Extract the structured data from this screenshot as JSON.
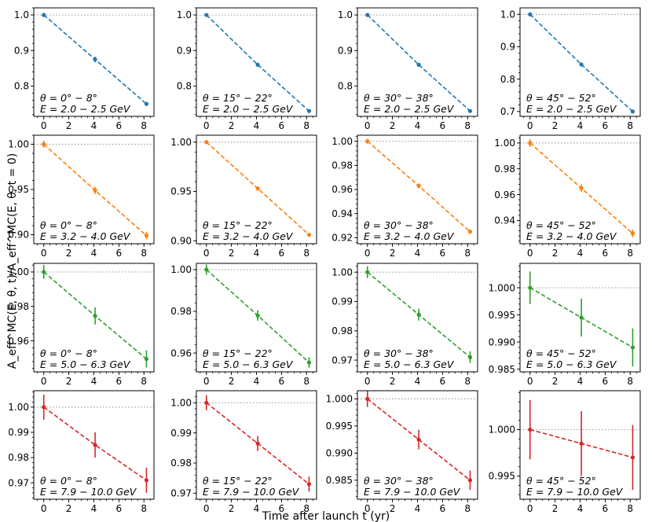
{
  "figure": {
    "xlabel": "Time after launch t (yr)",
    "ylabel": "A_eff^MC(E, θ, t)/A_eff^MC(E, θ, t = 0)"
  },
  "colors": [
    "#1f77b4",
    "#ff7f0e",
    "#2ca02c",
    "#d62728"
  ],
  "chart_data": [
    {
      "type": "line",
      "row": 0,
      "col": 0,
      "theta_label": "θ = 0° − 8°",
      "energy_label": "E = 2.0 − 2.5 GeV",
      "x": [
        0,
        4.1,
        8.2
      ],
      "y": [
        1.0,
        0.875,
        0.75
      ],
      "yerr": [
        0.006,
        0.008,
        0.006
      ],
      "xlim": [
        -0.8,
        8.8
      ],
      "ylim": [
        0.715,
        1.02
      ],
      "yticks": [
        0.8,
        0.9,
        1.0
      ],
      "ytick_labels": [
        "0.8",
        "0.9",
        "1.0"
      ],
      "xticks": [
        0,
        2,
        4,
        6,
        8
      ],
      "xtick_labels": [
        "0",
        "2",
        "4",
        "6",
        "8"
      ],
      "reference_y": 1.0
    },
    {
      "type": "line",
      "row": 0,
      "col": 1,
      "theta_label": "θ = 15° − 22°",
      "energy_label": "E = 2.0 − 2.5 GeV",
      "x": [
        0,
        4.1,
        8.2
      ],
      "y": [
        1.0,
        0.86,
        0.73
      ],
      "yerr": [
        0.003,
        0.003,
        0.003
      ],
      "xlim": [
        -0.8,
        8.8
      ],
      "ylim": [
        0.715,
        1.02
      ],
      "yticks": [
        0.8,
        0.9,
        1.0
      ],
      "ytick_labels": [
        "0.8",
        "0.9",
        "1.0"
      ],
      "xticks": [
        0,
        2,
        4,
        6,
        8
      ],
      "xtick_labels": [
        "0",
        "2",
        "4",
        "6",
        "8"
      ],
      "reference_y": 1.0
    },
    {
      "type": "line",
      "row": 0,
      "col": 2,
      "theta_label": "θ = 30° − 38°",
      "energy_label": "E = 2.0 − 2.5 GeV",
      "x": [
        0,
        4.1,
        8.2
      ],
      "y": [
        1.0,
        0.86,
        0.73
      ],
      "yerr": [
        0.003,
        0.003,
        0.003
      ],
      "xlim": [
        -0.8,
        8.8
      ],
      "ylim": [
        0.715,
        1.02
      ],
      "yticks": [
        0.8,
        0.9,
        1.0
      ],
      "ytick_labels": [
        "0.8",
        "0.9",
        "1.0"
      ],
      "xticks": [
        0,
        2,
        4,
        6,
        8
      ],
      "xtick_labels": [
        "0",
        "2",
        "4",
        "6",
        "8"
      ],
      "reference_y": 1.0
    },
    {
      "type": "line",
      "row": 0,
      "col": 3,
      "theta_label": "θ = 45° − 52°",
      "energy_label": "E = 2.0 − 2.5 GeV",
      "x": [
        0,
        4.1,
        8.2
      ],
      "y": [
        1.0,
        0.845,
        0.7
      ],
      "yerr": [
        0.006,
        0.006,
        0.006
      ],
      "xlim": [
        -0.8,
        8.8
      ],
      "ylim": [
        0.685,
        1.02
      ],
      "yticks": [
        0.7,
        0.8,
        0.9,
        1.0
      ],
      "ytick_labels": [
        "0.7",
        "0.8",
        "0.9",
        "1.0"
      ],
      "xticks": [
        0,
        2,
        4,
        6,
        8
      ],
      "xtick_labels": [
        "0",
        "2",
        "4",
        "6",
        "8"
      ],
      "reference_y": 1.0
    },
    {
      "type": "line",
      "row": 1,
      "col": 0,
      "theta_label": "θ = 0° − 8°",
      "energy_label": "E = 3.2 − 4.0 GeV",
      "x": [
        0,
        4.1,
        8.2
      ],
      "y": [
        1.0,
        0.949,
        0.899
      ],
      "yerr": [
        0.004,
        0.004,
        0.004
      ],
      "xlim": [
        -0.8,
        8.8
      ],
      "ylim": [
        0.89,
        1.01
      ],
      "yticks": [
        0.9,
        0.95,
        1.0
      ],
      "ytick_labels": [
        "0.90",
        "0.95",
        "1.00"
      ],
      "xticks": [
        0,
        2,
        4,
        6,
        8
      ],
      "xtick_labels": [
        "0",
        "2",
        "4",
        "6",
        "8"
      ],
      "reference_y": 1.0
    },
    {
      "type": "line",
      "row": 1,
      "col": 1,
      "theta_label": "θ = 15° − 22°",
      "energy_label": "E = 3.2 − 4.0 GeV",
      "x": [
        0,
        4.1,
        8.2
      ],
      "y": [
        1.0,
        0.953,
        0.906
      ],
      "yerr": [
        0.002,
        0.002,
        0.002
      ],
      "xlim": [
        -0.8,
        8.8
      ],
      "ylim": [
        0.897,
        1.007
      ],
      "yticks": [
        0.9,
        0.95,
        1.0
      ],
      "ytick_labels": [
        "0.90",
        "0.95",
        "1.00"
      ],
      "xticks": [
        0,
        2,
        4,
        6,
        8
      ],
      "xtick_labels": [
        "0",
        "2",
        "4",
        "6",
        "8"
      ],
      "reference_y": 1.0
    },
    {
      "type": "line",
      "row": 1,
      "col": 2,
      "theta_label": "θ = 30° − 38°",
      "energy_label": "E = 3.2 − 4.0 GeV",
      "x": [
        0,
        4.1,
        8.2
      ],
      "y": [
        1.0,
        0.963,
        0.925
      ],
      "yerr": [
        0.002,
        0.002,
        0.002
      ],
      "xlim": [
        -0.8,
        8.8
      ],
      "ylim": [
        0.915,
        1.005
      ],
      "yticks": [
        0.92,
        0.94,
        0.96,
        0.98,
        1.0
      ],
      "ytick_labels": [
        "0.92",
        "0.94",
        "0.96",
        "0.98",
        "1.00"
      ],
      "xticks": [
        0,
        2,
        4,
        6,
        8
      ],
      "xtick_labels": [
        "0",
        "2",
        "4",
        "6",
        "8"
      ],
      "reference_y": 1.0
    },
    {
      "type": "line",
      "row": 1,
      "col": 3,
      "theta_label": "θ = 45° − 52°",
      "energy_label": "E = 3.2 − 4.0 GeV",
      "x": [
        0,
        4.1,
        8.2
      ],
      "y": [
        1.0,
        0.965,
        0.93
      ],
      "yerr": [
        0.003,
        0.003,
        0.003
      ],
      "xlim": [
        -0.8,
        8.8
      ],
      "ylim": [
        0.922,
        1.006
      ],
      "yticks": [
        0.94,
        0.96,
        0.98,
        1.0
      ],
      "ytick_labels": [
        "0.94",
        "0.96",
        "0.98",
        "1.00"
      ],
      "xticks": [
        0,
        2,
        4,
        6,
        8
      ],
      "xtick_labels": [
        "0",
        "2",
        "4",
        "6",
        "8"
      ],
      "reference_y": 1.0
    },
    {
      "type": "line",
      "row": 2,
      "col": 0,
      "theta_label": "θ = 0° − 8°",
      "energy_label": "E = 5.0 − 6.3 GeV",
      "x": [
        0,
        4.1,
        8.2
      ],
      "y": [
        1.0,
        0.9745,
        0.9495
      ],
      "yerr": [
        0.004,
        0.005,
        0.005
      ],
      "xlim": [
        -0.8,
        8.8
      ],
      "ylim": [
        0.942,
        1.005
      ],
      "yticks": [
        0.96,
        0.98,
        1.0
      ],
      "ytick_labels": [
        "0.96",
        "0.98",
        "1.00"
      ],
      "xticks": [
        0,
        2,
        4,
        6,
        8
      ],
      "xtick_labels": [
        "0",
        "2",
        "4",
        "6",
        "8"
      ],
      "reference_y": 1.0
    },
    {
      "type": "line",
      "row": 2,
      "col": 1,
      "theta_label": "θ = 15° − 22°",
      "energy_label": "E = 5.0 − 6.3 GeV",
      "x": [
        0,
        4.1,
        8.2
      ],
      "y": [
        1.0,
        0.978,
        0.9555
      ],
      "yerr": [
        0.0025,
        0.0025,
        0.0025
      ],
      "xlim": [
        -0.8,
        8.8
      ],
      "ylim": [
        0.951,
        1.003
      ],
      "yticks": [
        0.96,
        0.98,
        1.0
      ],
      "ytick_labels": [
        "0.96",
        "0.98",
        "1.00"
      ],
      "xticks": [
        0,
        2,
        4,
        6,
        8
      ],
      "xtick_labels": [
        "0",
        "2",
        "4",
        "6",
        "8"
      ],
      "reference_y": 1.0
    },
    {
      "type": "line",
      "row": 2,
      "col": 2,
      "theta_label": "θ = 30° − 38°",
      "energy_label": "E = 5.0 − 6.3 GeV",
      "x": [
        0,
        4.1,
        8.2
      ],
      "y": [
        1.0,
        0.9855,
        0.971
      ],
      "yerr": [
        0.002,
        0.002,
        0.002
      ],
      "xlim": [
        -0.8,
        8.8
      ],
      "ylim": [
        0.966,
        1.003
      ],
      "yticks": [
        0.97,
        0.98,
        0.99,
        1.0
      ],
      "ytick_labels": [
        "0.97",
        "0.98",
        "0.99",
        "1.00"
      ],
      "xticks": [
        0,
        2,
        4,
        6,
        8
      ],
      "xtick_labels": [
        "0",
        "2",
        "4",
        "6",
        "8"
      ],
      "reference_y": 1.0
    },
    {
      "type": "line",
      "row": 2,
      "col": 3,
      "theta_label": "θ = 45° − 52°",
      "energy_label": "E = 5.0 − 6.3 GeV",
      "x": [
        0,
        4.1,
        8.2
      ],
      "y": [
        1.0,
        0.9945,
        0.989
      ],
      "yerr": [
        0.003,
        0.0035,
        0.0035
      ],
      "xlim": [
        -0.8,
        8.8
      ],
      "ylim": [
        0.9845,
        1.0045
      ],
      "yticks": [
        0.985,
        0.99,
        0.995,
        1.0
      ],
      "ytick_labels": [
        "0.985",
        "0.990",
        "0.995",
        "1.000"
      ],
      "xticks": [
        0,
        2,
        4,
        6,
        8
      ],
      "xtick_labels": [
        "0",
        "2",
        "4",
        "6",
        "8"
      ],
      "reference_y": 1.0
    },
    {
      "type": "line",
      "row": 3,
      "col": 0,
      "theta_label": "θ = 0° − 8°",
      "energy_label": "E = 7.9 − 10.0 GeV",
      "x": [
        0,
        4.1,
        8.2
      ],
      "y": [
        1.0,
        0.985,
        0.971
      ],
      "yerr": [
        0.005,
        0.005,
        0.005
      ],
      "xlim": [
        -0.8,
        8.8
      ],
      "ylim": [
        0.9635,
        1.0065
      ],
      "yticks": [
        0.97,
        0.98,
        0.99,
        1.0
      ],
      "ytick_labels": [
        "0.97",
        "0.98",
        "0.99",
        "1.00"
      ],
      "xticks": [
        0,
        2,
        4,
        6,
        8
      ],
      "xtick_labels": [
        "0",
        "2",
        "4",
        "6",
        "8"
      ],
      "reference_y": 1.0
    },
    {
      "type": "line",
      "row": 3,
      "col": 1,
      "theta_label": "θ = 15° − 22°",
      "energy_label": "E = 7.9 − 10.0 GeV",
      "x": [
        0,
        4.1,
        8.2
      ],
      "y": [
        1.0,
        0.9865,
        0.973
      ],
      "yerr": [
        0.0025,
        0.0025,
        0.0025
      ],
      "xlim": [
        -0.8,
        8.8
      ],
      "ylim": [
        0.968,
        1.004
      ],
      "yticks": [
        0.97,
        0.98,
        0.99,
        1.0
      ],
      "ytick_labels": [
        "0.97",
        "0.98",
        "0.99",
        "1.00"
      ],
      "xticks": [
        0,
        2,
        4,
        6,
        8
      ],
      "xtick_labels": [
        "0",
        "2",
        "4",
        "6",
        "8"
      ],
      "reference_y": 1.0
    },
    {
      "type": "line",
      "row": 3,
      "col": 2,
      "theta_label": "θ = 30° − 38°",
      "energy_label": "E = 7.9 − 10.0 GeV",
      "x": [
        0,
        4.1,
        8.2
      ],
      "y": [
        1.0,
        0.9925,
        0.985
      ],
      "yerr": [
        0.0015,
        0.0018,
        0.0018
      ],
      "xlim": [
        -0.8,
        8.8
      ],
      "ylim": [
        0.9815,
        1.0015
      ],
      "yticks": [
        0.985,
        0.99,
        0.995,
        1.0
      ],
      "ytick_labels": [
        "0.985",
        "0.990",
        "0.995",
        "1.000"
      ],
      "xticks": [
        0,
        2,
        4,
        6,
        8
      ],
      "xtick_labels": [
        "0",
        "2",
        "4",
        "6",
        "8"
      ],
      "reference_y": 1.0
    },
    {
      "type": "line",
      "row": 3,
      "col": 3,
      "theta_label": "θ = 45° − 52°",
      "energy_label": "E = 7.9 − 10.0 GeV",
      "x": [
        0,
        4.1,
        8.2
      ],
      "y": [
        1.0,
        0.9985,
        0.997
      ],
      "yerr": [
        0.0032,
        0.0035,
        0.0035
      ],
      "xlim": [
        -0.8,
        8.8
      ],
      "ylim": [
        0.9925,
        1.0042
      ],
      "yticks": [
        0.995,
        1.0
      ],
      "ytick_labels": [
        "0.995",
        "1.000"
      ],
      "xticks": [
        0,
        2,
        4,
        6,
        8
      ],
      "xtick_labels": [
        "0",
        "2",
        "4",
        "6",
        "8"
      ],
      "reference_y": 1.0
    }
  ]
}
